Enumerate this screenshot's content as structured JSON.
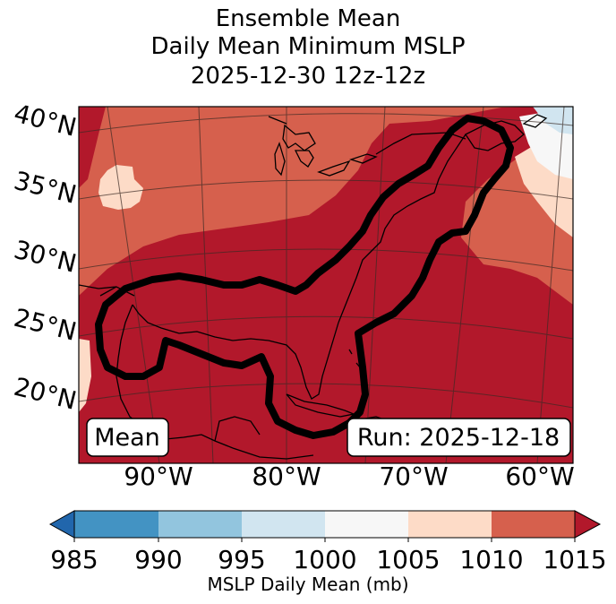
{
  "title": {
    "line1": "Ensemble Mean",
    "line2": "Daily Mean Minimum MSLP",
    "line3": "2025-12-30 12z-12z"
  },
  "map": {
    "lat_labels": [
      "40°N",
      "35°N",
      "30°N",
      "25°N",
      "20°N"
    ],
    "lon_labels": [
      "90°W",
      "80°W",
      "70°W",
      "60°W"
    ],
    "mean_box": "Mean",
    "run_box": "Run: 2025-12-18",
    "fill_colors": {
      "1010_1015": "#d6604d",
      "above_1015": "#b2182b",
      "1005_1010": "#fddbc7",
      "1000_1005": "#f7f7f7",
      "995_1000": "#d1e5f0",
      "contour": "#000000"
    }
  },
  "colorbar": {
    "label": "MSLP Daily Mean (mb)",
    "ticks": [
      "985",
      "990",
      "995",
      "1000",
      "1005",
      "1010",
      "1015"
    ],
    "colors": [
      "#4393c3",
      "#92c5de",
      "#d1e5f0",
      "#f7f7f7",
      "#fddbc7",
      "#d6604d"
    ],
    "under_color": "#2166ac",
    "over_color": "#b2182b"
  }
}
